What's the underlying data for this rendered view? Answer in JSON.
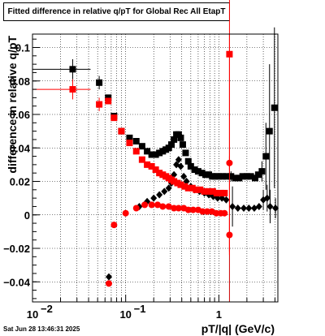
{
  "chart_data": {
    "type": "scatter",
    "title": "Fitted difference in relative q/pT for Global Rec All EtapT",
    "xlabel": "pT/|q| (GeV/c)",
    "ylabel": "difference in relative q/pT",
    "x_scale": "log",
    "xlim": [
      0.01,
      4.3
    ],
    "ylim": [
      -0.052,
      0.108
    ],
    "grid": true,
    "x_ticks": [
      {
        "value": 0.01,
        "base": "10",
        "exp": "−2"
      },
      {
        "value": 0.1,
        "base": "10",
        "exp": "−1"
      },
      {
        "value": 1,
        "base": "1",
        "exp": ""
      }
    ],
    "y_ticks": [
      -0.04,
      -0.02,
      0,
      0.02,
      0.04,
      0.06,
      0.08,
      0.1
    ],
    "y_tick_labels": [
      "−0.04",
      "−0.02",
      "0",
      "0.02",
      "0.04",
      "0.06",
      "0.08",
      "0.1"
    ],
    "vertical_line": {
      "x": 1.3,
      "color": "#cc0000"
    },
    "series": [
      {
        "marker": "square",
        "color": "#000000",
        "points": [
          {
            "x": 0.027,
            "y": 0.087,
            "xerr": [
              0.017,
              0.015
            ],
            "yerr": 0.006
          },
          {
            "x": 0.052,
            "y": 0.079,
            "yerr": 0.004
          },
          {
            "x": 0.065,
            "y": 0.07
          },
          {
            "x": 0.075,
            "y": 0.059
          },
          {
            "x": 0.09,
            "y": 0.05
          },
          {
            "x": 0.11,
            "y": 0.046
          },
          {
            "x": 0.13,
            "y": 0.044
          },
          {
            "x": 0.15,
            "y": 0.041
          },
          {
            "x": 0.17,
            "y": 0.038
          },
          {
            "x": 0.19,
            "y": 0.036
          },
          {
            "x": 0.21,
            "y": 0.036
          },
          {
            "x": 0.23,
            "y": 0.037
          },
          {
            "x": 0.25,
            "y": 0.038
          },
          {
            "x": 0.27,
            "y": 0.039
          },
          {
            "x": 0.29,
            "y": 0.04
          },
          {
            "x": 0.31,
            "y": 0.042
          },
          {
            "x": 0.33,
            "y": 0.045
          },
          {
            "x": 0.35,
            "y": 0.048
          },
          {
            "x": 0.37,
            "y": 0.048
          },
          {
            "x": 0.39,
            "y": 0.046
          },
          {
            "x": 0.41,
            "y": 0.042
          },
          {
            "x": 0.44,
            "y": 0.037
          },
          {
            "x": 0.47,
            "y": 0.032
          },
          {
            "x": 0.5,
            "y": 0.029
          },
          {
            "x": 0.55,
            "y": 0.027
          },
          {
            "x": 0.6,
            "y": 0.026
          },
          {
            "x": 0.66,
            "y": 0.025
          },
          {
            "x": 0.72,
            "y": 0.024
          },
          {
            "x": 0.78,
            "y": 0.024
          },
          {
            "x": 0.85,
            "y": 0.023
          },
          {
            "x": 0.92,
            "y": 0.023
          },
          {
            "x": 1.0,
            "y": 0.023
          },
          {
            "x": 1.1,
            "y": 0.023
          },
          {
            "x": 1.2,
            "y": 0.023
          },
          {
            "x": 1.35,
            "y": 0.023,
            "yerr": 0.003
          },
          {
            "x": 1.5,
            "y": 0.022
          },
          {
            "x": 1.65,
            "y": 0.022
          },
          {
            "x": 1.8,
            "y": 0.023
          },
          {
            "x": 2.0,
            "y": 0.023
          },
          {
            "x": 2.2,
            "y": 0.023
          },
          {
            "x": 2.45,
            "y": 0.022
          },
          {
            "x": 2.65,
            "y": 0.024
          },
          {
            "x": 2.9,
            "y": 0.026,
            "yerr": 0.006
          },
          {
            "x": 3.2,
            "y": 0.035,
            "yerr": 0.02
          },
          {
            "x": 3.5,
            "y": 0.05,
            "yerr": 0.04
          },
          {
            "x": 3.95,
            "y": 0.064,
            "yerr": 0.048
          }
        ]
      },
      {
        "marker": "diamond",
        "color": "#000000",
        "points": [
          {
            "x": 0.066,
            "y": -0.037
          },
          {
            "x": 0.14,
            "y": 0.005
          },
          {
            "x": 0.17,
            "y": 0.008
          },
          {
            "x": 0.2,
            "y": 0.01
          },
          {
            "x": 0.23,
            "y": 0.012
          },
          {
            "x": 0.26,
            "y": 0.014
          },
          {
            "x": 0.29,
            "y": 0.016
          },
          {
            "x": 0.31,
            "y": 0.019
          },
          {
            "x": 0.33,
            "y": 0.024
          },
          {
            "x": 0.35,
            "y": 0.03
          },
          {
            "x": 0.37,
            "y": 0.033
          },
          {
            "x": 0.39,
            "y": 0.029
          },
          {
            "x": 0.42,
            "y": 0.023
          },
          {
            "x": 0.45,
            "y": 0.02
          },
          {
            "x": 0.5,
            "y": 0.017
          },
          {
            "x": 0.55,
            "y": 0.015
          },
          {
            "x": 0.62,
            "y": 0.014
          },
          {
            "x": 0.7,
            "y": 0.013
          },
          {
            "x": 0.78,
            "y": 0.012
          },
          {
            "x": 0.87,
            "y": 0.011
          },
          {
            "x": 0.97,
            "y": 0.01
          },
          {
            "x": 1.08,
            "y": 0.01
          },
          {
            "x": 1.2,
            "y": 0.009
          },
          {
            "x": 1.4,
            "y": 0.005,
            "yerr": 0.012
          },
          {
            "x": 1.6,
            "y": 0.004
          },
          {
            "x": 1.85,
            "y": 0.004
          },
          {
            "x": 2.1,
            "y": 0.004
          },
          {
            "x": 2.4,
            "y": 0.004
          },
          {
            "x": 2.7,
            "y": 0.005
          },
          {
            "x": 3.0,
            "y": 0.009,
            "yerr": 0.006
          },
          {
            "x": 3.3,
            "y": 0.01,
            "yerr": 0.008
          },
          {
            "x": 3.55,
            "y": 0.005,
            "yerr": 0.01
          },
          {
            "x": 4.05,
            "y": 0.004,
            "yerr": 0.006
          }
        ]
      },
      {
        "marker": "square",
        "color": "#ff0000",
        "points": [
          {
            "x": 0.027,
            "y": 0.075,
            "xerr": [
              0.017,
              0.015
            ],
            "yerr": 0.006
          },
          {
            "x": 0.052,
            "y": 0.066,
            "yerr": 0.004
          },
          {
            "x": 0.065,
            "y": 0.068
          },
          {
            "x": 0.075,
            "y": 0.058
          },
          {
            "x": 0.09,
            "y": 0.05
          },
          {
            "x": 0.11,
            "y": 0.043
          },
          {
            "x": 0.13,
            "y": 0.038
          },
          {
            "x": 0.15,
            "y": 0.033
          },
          {
            "x": 0.17,
            "y": 0.03
          },
          {
            "x": 0.19,
            "y": 0.029
          },
          {
            "x": 0.21,
            "y": 0.027
          },
          {
            "x": 0.23,
            "y": 0.025
          },
          {
            "x": 0.25,
            "y": 0.024
          },
          {
            "x": 0.27,
            "y": 0.023
          },
          {
            "x": 0.29,
            "y": 0.022
          },
          {
            "x": 0.31,
            "y": 0.021
          },
          {
            "x": 0.33,
            "y": 0.02
          },
          {
            "x": 0.36,
            "y": 0.019
          },
          {
            "x": 0.39,
            "y": 0.018
          },
          {
            "x": 0.43,
            "y": 0.017
          },
          {
            "x": 0.47,
            "y": 0.016
          },
          {
            "x": 0.52,
            "y": 0.016
          },
          {
            "x": 0.57,
            "y": 0.015
          },
          {
            "x": 0.63,
            "y": 0.015
          },
          {
            "x": 0.7,
            "y": 0.014
          },
          {
            "x": 0.78,
            "y": 0.014
          },
          {
            "x": 0.86,
            "y": 0.014
          },
          {
            "x": 0.95,
            "y": 0.013
          },
          {
            "x": 1.05,
            "y": 0.013
          },
          {
            "x": 1.15,
            "y": 0.013
          },
          {
            "x": 1.3,
            "y": 0.096,
            "yerr": 0.12
          }
        ]
      },
      {
        "marker": "circle",
        "color": "#ff0000",
        "points": [
          {
            "x": 0.066,
            "y": -0.041
          },
          {
            "x": 0.075,
            "y": -0.006
          },
          {
            "x": 0.1,
            "y": 0.001
          },
          {
            "x": 0.13,
            "y": 0.004
          },
          {
            "x": 0.16,
            "y": 0.006
          },
          {
            "x": 0.19,
            "y": 0.006
          },
          {
            "x": 0.22,
            "y": 0.006
          },
          {
            "x": 0.25,
            "y": 0.005
          },
          {
            "x": 0.29,
            "y": 0.005
          },
          {
            "x": 0.33,
            "y": 0.004
          },
          {
            "x": 0.37,
            "y": 0.004
          },
          {
            "x": 0.42,
            "y": 0.004
          },
          {
            "x": 0.47,
            "y": 0.003
          },
          {
            "x": 0.53,
            "y": 0.003
          },
          {
            "x": 0.6,
            "y": 0.003
          },
          {
            "x": 0.67,
            "y": 0.002
          },
          {
            "x": 0.75,
            "y": 0.002
          },
          {
            "x": 0.84,
            "y": 0.002
          },
          {
            "x": 0.94,
            "y": 0.001
          },
          {
            "x": 1.05,
            "y": 0.001
          },
          {
            "x": 1.15,
            "y": 0.001
          },
          {
            "x": 1.3,
            "y": 0.031,
            "yerr": 0.004
          },
          {
            "x": 1.3,
            "y": -0.012,
            "yerr": 0.01
          }
        ]
      }
    ]
  },
  "timestamp": "Sat Jun 28 13:46:31 2025"
}
